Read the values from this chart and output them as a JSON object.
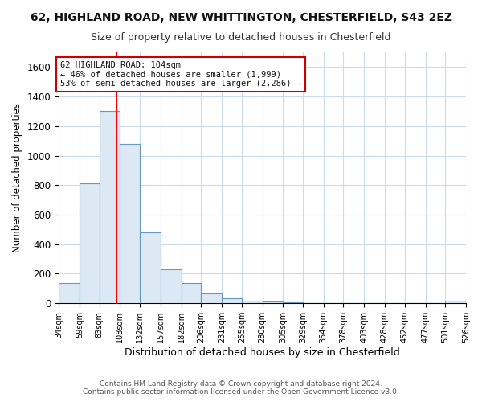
{
  "title": "62, HIGHLAND ROAD, NEW WHITTINGTON, CHESTERFIELD, S43 2EZ",
  "subtitle": "Size of property relative to detached houses in Chesterfield",
  "xlabel": "Distribution of detached houses by size in Chesterfield",
  "ylabel": "Number of detached properties",
  "footer1": "Contains HM Land Registry data © Crown copyright and database right 2024.",
  "footer2": "Contains public sector information licensed under the Open Government Licence v3.0.",
  "annotation_title": "62 HIGHLAND ROAD: 104sqm",
  "annotation_line1": "← 46% of detached houses are smaller (1,999)",
  "annotation_line2": "53% of semi-detached houses are larger (2,286) →",
  "red_line_x": 104,
  "ylim": [
    0,
    1700
  ],
  "yticks": [
    0,
    200,
    400,
    600,
    800,
    1000,
    1200,
    1400,
    1600
  ],
  "bar_edges": [
    34,
    59,
    83,
    108,
    132,
    157,
    182,
    206,
    231,
    255,
    280,
    305,
    329,
    354,
    378,
    403,
    428,
    452,
    477,
    501,
    526
  ],
  "bar_heights": [
    140,
    810,
    1300,
    1080,
    480,
    230,
    140,
    65,
    35,
    20,
    10,
    5,
    3,
    2,
    1,
    1,
    1,
    1,
    1,
    15
  ],
  "bar_color": "#dce9f5",
  "bar_edgecolor": "#6699bb",
  "grid_color": "#c8dcea",
  "bg_color": "#ffffff",
  "title_color": "#111111",
  "subtitle_color": "#333333",
  "annotation_box_color": "#ffffff",
  "annotation_box_edgecolor": "#cc0000",
  "figsize": [
    6.0,
    5.0
  ],
  "dpi": 100
}
